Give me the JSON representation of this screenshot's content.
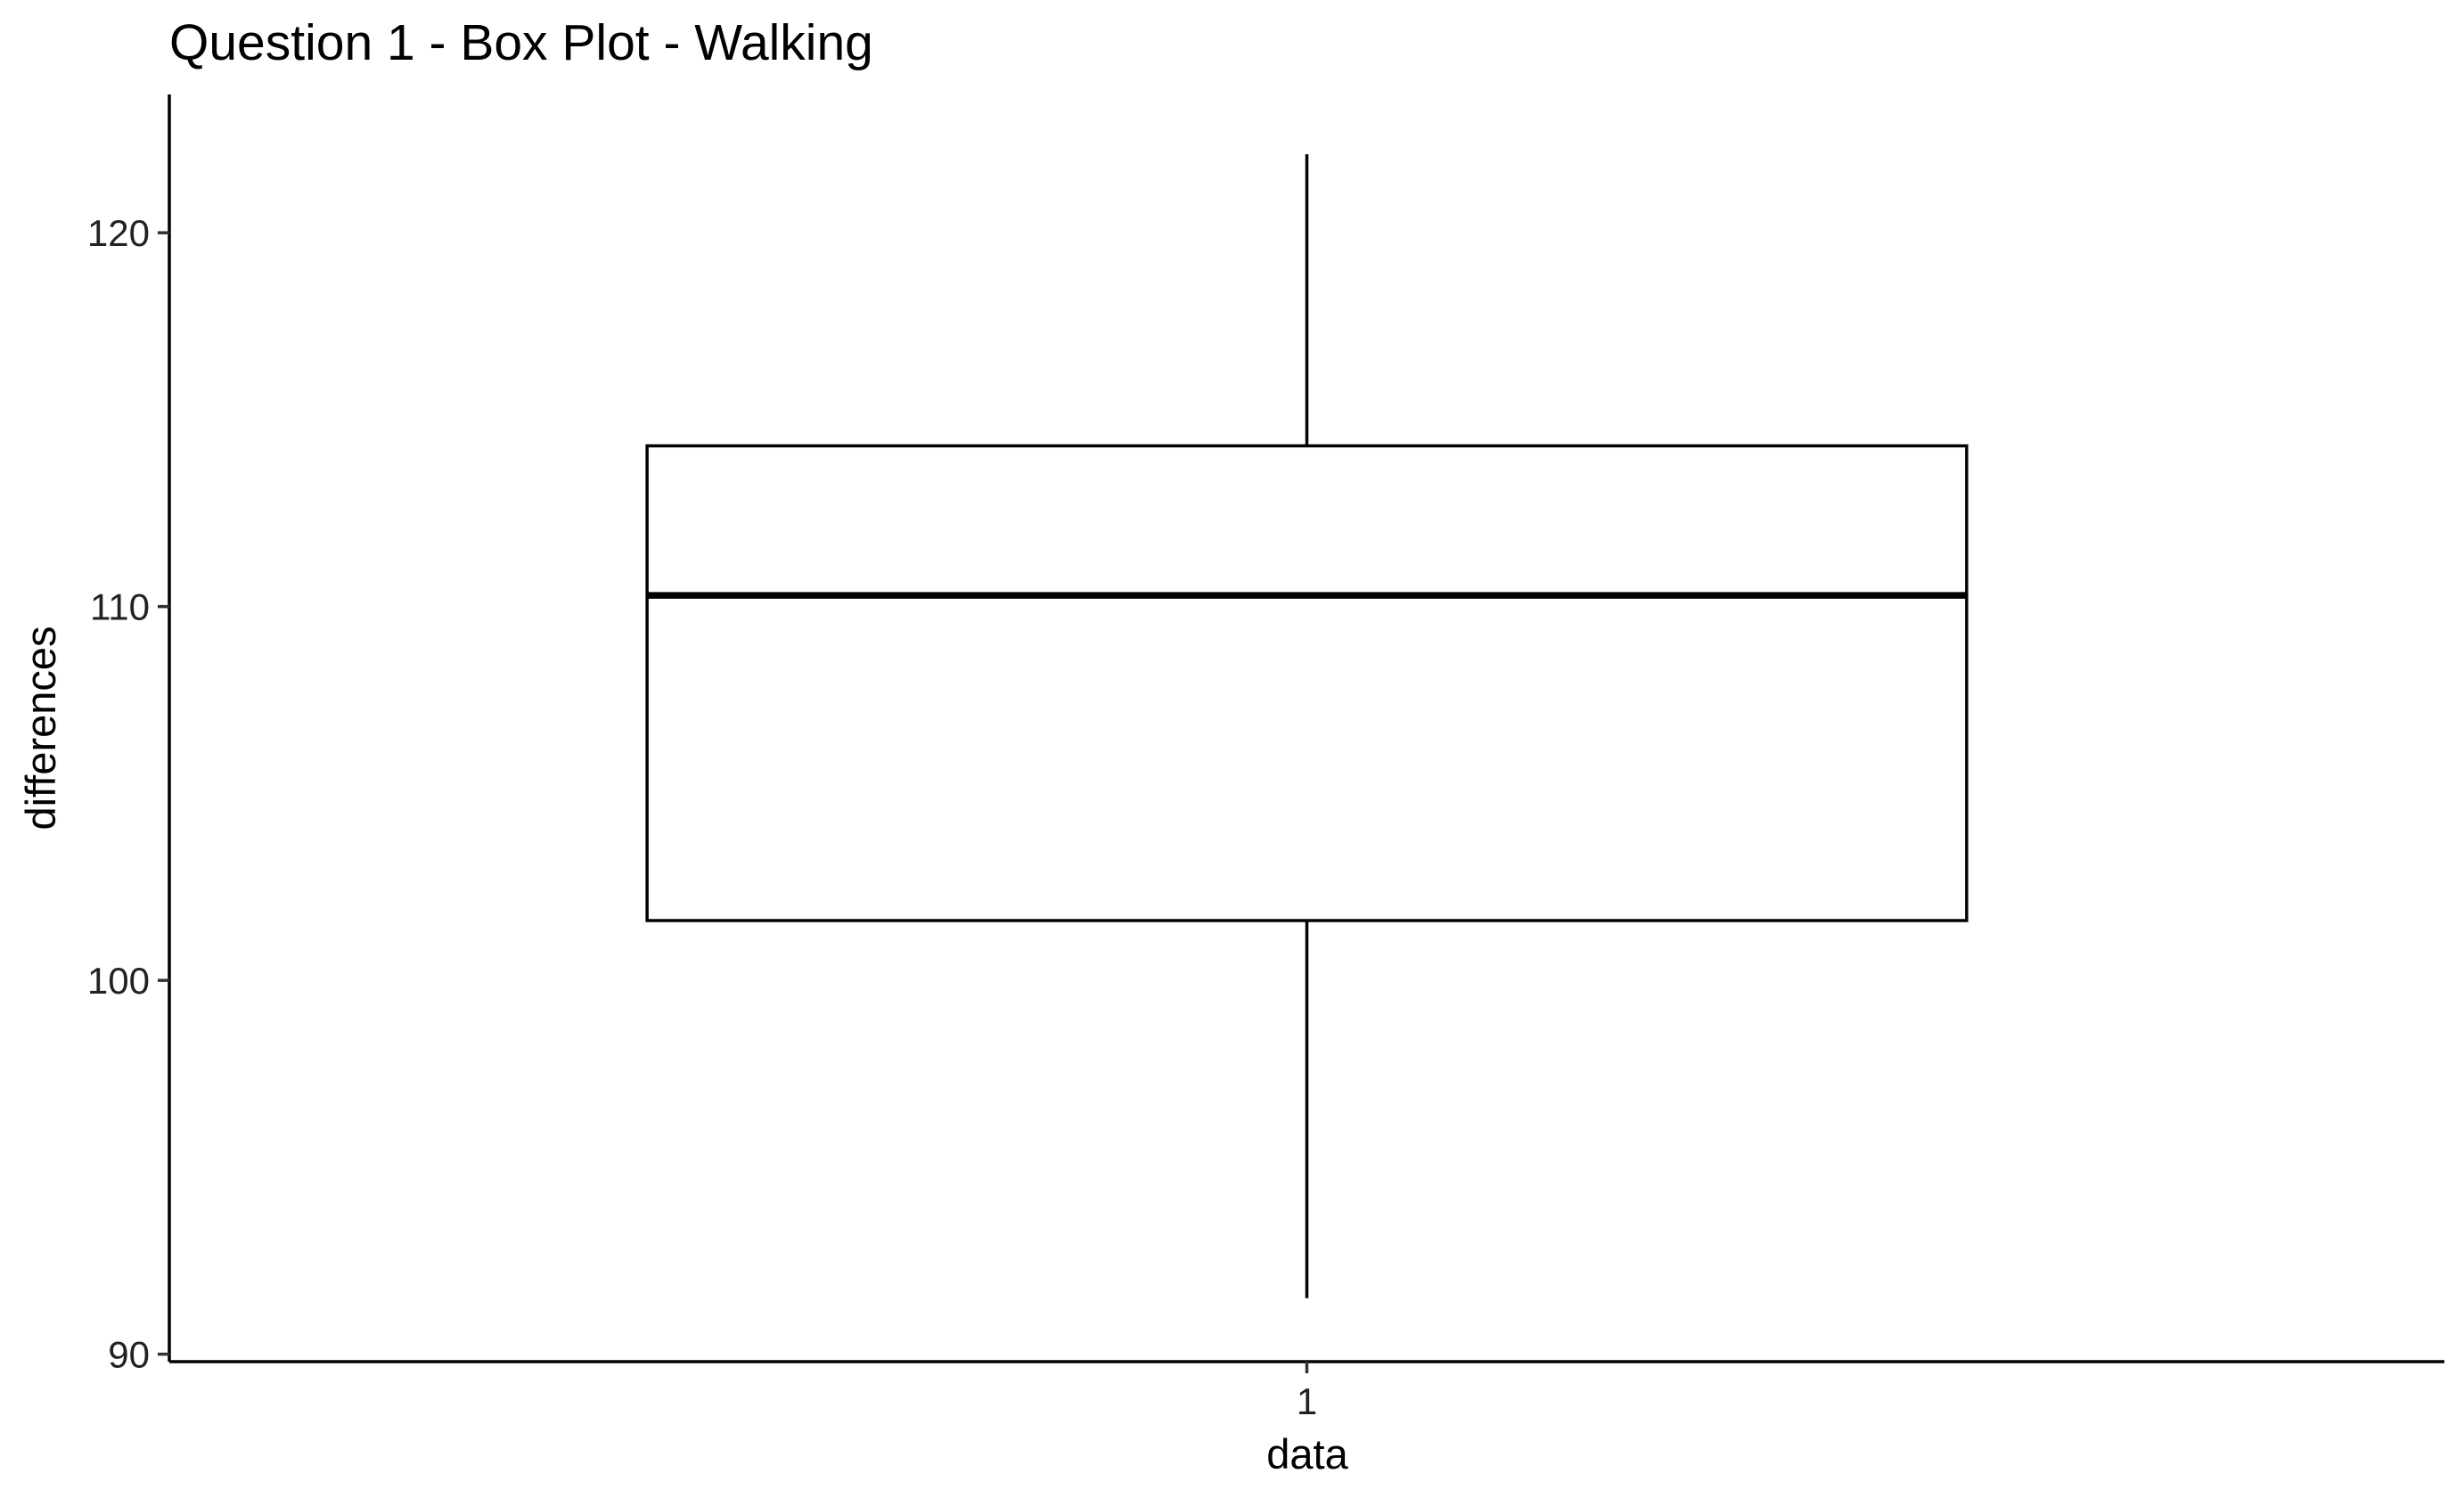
{
  "chart_data": {
    "type": "box",
    "title": "Question 1 - Box Plot - Walking",
    "xlabel": "data",
    "ylabel": "differences",
    "categories": [
      "1"
    ],
    "boxes": [
      {
        "category": "1",
        "whisker_low": 91.5,
        "q1": 101.6,
        "median": 110.3,
        "q3": 114.3,
        "whisker_high": 122.1
      }
    ],
    "yticks": [
      90,
      100,
      110,
      120
    ],
    "ylim": [
      89.8,
      123.7
    ],
    "grid": false,
    "legend": "none"
  }
}
